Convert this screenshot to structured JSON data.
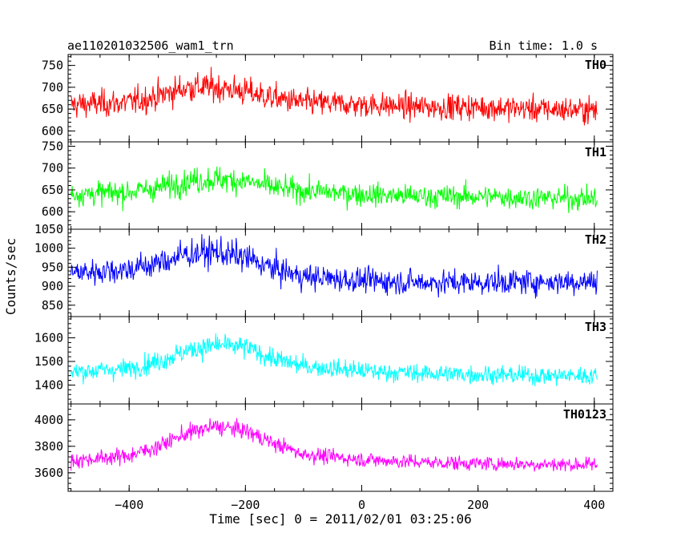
{
  "header": {
    "title": "ae110201032506_wam1_trn",
    "bin_time": "Bin time: 1.0 s"
  },
  "chart_data": {
    "type": "line",
    "title": "ae110201032506_wam1_trn",
    "subtitle": "Bin time: 1.0 s",
    "xlabel": "Time [sec] 0 = 2011/02/01 03:25:06",
    "ylabel": "Counts/sec",
    "x_ticks": [
      -400,
      -200,
      0,
      200,
      400
    ],
    "x_tick_labels": [
      "−400",
      "−200",
      "0",
      "200",
      "400"
    ],
    "xlim": [
      -505,
      432
    ],
    "grid": false,
    "panels": [
      {
        "name": "TH0",
        "color": "#ff0000",
        "ylim": [
          575,
          775
        ],
        "y_ticks": [
          600,
          650,
          700,
          750
        ],
        "envelope": {
          "x": [
            -500,
            -400,
            -350,
            -300,
            -250,
            -200,
            -150,
            -100,
            0,
            100,
            200,
            300,
            405
          ],
          "center": [
            660,
            665,
            680,
            700,
            700,
            690,
            675,
            665,
            660,
            655,
            655,
            650,
            648
          ],
          "spread": [
            48,
            48,
            50,
            52,
            52,
            50,
            48,
            46,
            45,
            45,
            45,
            45,
            45
          ]
        }
      },
      {
        "name": "TH1",
        "color": "#00ff00",
        "ylim": [
          560,
          760
        ],
        "y_ticks": [
          600,
          650,
          700,
          750
        ],
        "envelope": {
          "x": [
            -500,
            -400,
            -350,
            -300,
            -250,
            -200,
            -150,
            -100,
            0,
            100,
            200,
            300,
            405
          ],
          "center": [
            640,
            645,
            655,
            670,
            675,
            670,
            655,
            648,
            640,
            635,
            635,
            632,
            630
          ],
          "spread": [
            42,
            42,
            44,
            46,
            46,
            44,
            42,
            40,
            40,
            40,
            40,
            40,
            40
          ]
        }
      },
      {
        "name": "TH2",
        "color": "#0000ff",
        "ylim": [
          820,
          1050
        ],
        "y_ticks": [
          850,
          900,
          950,
          1000,
          1050
        ],
        "envelope": {
          "x": [
            -500,
            -400,
            -350,
            -300,
            -250,
            -200,
            -150,
            -100,
            0,
            100,
            200,
            300,
            405
          ],
          "center": [
            935,
            945,
            960,
            985,
            990,
            975,
            945,
            925,
            915,
            910,
            910,
            912,
            912
          ],
          "spread": [
            55,
            55,
            58,
            60,
            60,
            58,
            55,
            52,
            50,
            50,
            50,
            50,
            50
          ]
        }
      },
      {
        "name": "TH3",
        "color": "#00ffff",
        "ylim": [
          1320,
          1690
        ],
        "y_ticks": [
          1400,
          1500,
          1600
        ],
        "envelope": {
          "x": [
            -500,
            -400,
            -350,
            -300,
            -250,
            -200,
            -150,
            -100,
            0,
            100,
            200,
            300,
            405
          ],
          "center": [
            1455,
            1470,
            1500,
            1545,
            1570,
            1560,
            1510,
            1480,
            1460,
            1450,
            1445,
            1440,
            1440
          ],
          "spread": [
            65,
            65,
            68,
            70,
            70,
            68,
            65,
            62,
            60,
            60,
            60,
            60,
            60
          ]
        }
      },
      {
        "name": "TH0123",
        "color": "#ff00ff",
        "ylim": [
          3460,
          4120
        ],
        "y_ticks": [
          3600,
          3800,
          4000
        ],
        "envelope": {
          "x": [
            -500,
            -400,
            -350,
            -300,
            -250,
            -200,
            -150,
            -100,
            0,
            100,
            200,
            300,
            405
          ],
          "center": [
            3690,
            3730,
            3800,
            3900,
            3950,
            3920,
            3820,
            3740,
            3700,
            3680,
            3670,
            3665,
            3660
          ],
          "spread": [
            90,
            90,
            95,
            100,
            100,
            95,
            90,
            88,
            85,
            85,
            85,
            85,
            85
          ]
        }
      }
    ]
  }
}
